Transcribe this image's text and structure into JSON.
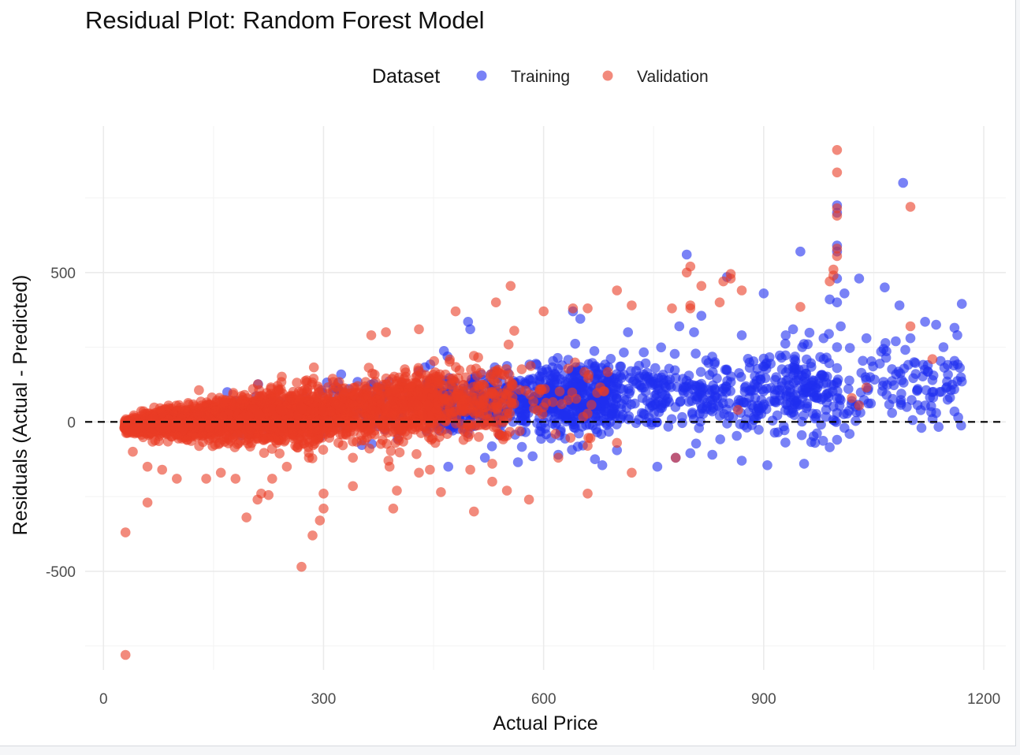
{
  "chart_data": {
    "type": "scatter",
    "title": "Residual Plot: Random Forest Model",
    "xlabel": "Actual Price",
    "ylabel": "Residuals (Actual - Predicted)",
    "xlim": [
      -25,
      1230
    ],
    "ylim": [
      -830,
      990
    ],
    "x_ticks": [
      0,
      300,
      600,
      900,
      1200
    ],
    "x_tick_labels": [
      "0",
      "300",
      "600",
      "900",
      "1200"
    ],
    "y_ticks": [
      -500,
      0,
      500
    ],
    "y_tick_labels": [
      "-500",
      "0",
      "500"
    ],
    "x_minor_ticks": [
      150,
      450,
      750,
      1050
    ],
    "y_minor_ticks": [
      -750,
      -250,
      250,
      750
    ],
    "grid": true,
    "reference_line": {
      "y": 0,
      "style": "dashed",
      "color": "#000000"
    },
    "legend": {
      "title": "Dataset",
      "position": "top",
      "entries": [
        {
          "label": "Training",
          "color": "#1f2ff0"
        },
        {
          "label": "Validation",
          "color": "#ea3c24"
        }
      ]
    },
    "series": [
      {
        "name": "Training",
        "color": "#1f2ff0",
        "points": [
          [
            795,
            560
          ],
          [
            1000,
            700
          ],
          [
            1000,
            725
          ],
          [
            1000,
            590
          ],
          [
            1000,
            570
          ],
          [
            950,
            570
          ],
          [
            1090,
            800
          ],
          [
            1030,
            480
          ],
          [
            1065,
            450
          ],
          [
            1170,
            395
          ],
          [
            1160,
            315
          ],
          [
            1145,
            250
          ],
          [
            1120,
            335
          ],
          [
            1135,
            325
          ],
          [
            1085,
            390
          ],
          [
            850,
            485
          ],
          [
            900,
            430
          ],
          [
            990,
            410
          ],
          [
            1000,
            400
          ],
          [
            1010,
            430
          ],
          [
            940,
            310
          ],
          [
            1005,
            320
          ],
          [
            640,
            370
          ],
          [
            650,
            345
          ],
          [
            497,
            335
          ],
          [
            500,
            310
          ],
          [
            715,
            300
          ],
          [
            785,
            320
          ],
          [
            815,
            355
          ],
          [
            805,
            300
          ],
          [
            870,
            290
          ],
          [
            930,
            290
          ],
          [
            960,
            260
          ],
          [
            1040,
            280
          ],
          [
            1060,
            235
          ],
          [
            1100,
            280
          ],
          [
            1105,
            200
          ],
          [
            1130,
            140
          ],
          [
            1150,
            135
          ],
          [
            1170,
            135
          ],
          [
            1110,
            110
          ],
          [
            1140,
            100
          ],
          [
            1120,
            55
          ],
          [
            1135,
            30
          ],
          [
            1160,
            35
          ],
          [
            1115,
            -20
          ],
          [
            1000,
            -60
          ],
          [
            990,
            -85
          ],
          [
            970,
            -70
          ],
          [
            955,
            -140
          ],
          [
            905,
            -145
          ],
          [
            800,
            -105
          ],
          [
            780,
            -120
          ],
          [
            755,
            -150
          ],
          [
            670,
            -125
          ],
          [
            680,
            -145
          ],
          [
            620,
            -110
          ],
          [
            585,
            -115
          ],
          [
            565,
            -135
          ],
          [
            520,
            -120
          ],
          [
            470,
            -150
          ],
          [
            700,
            -95
          ],
          [
            830,
            -110
          ],
          [
            870,
            -130
          ],
          [
            1000,
            480
          ],
          [
            1000,
            250
          ],
          [
            1000,
            180
          ],
          [
            1000,
            130
          ],
          [
            1000,
            80
          ],
          [
            1000,
            30
          ],
          [
            1010,
            -20
          ],
          [
            1020,
            70
          ],
          [
            1045,
            150
          ],
          [
            1075,
            30
          ],
          [
            1095,
            50
          ]
        ],
        "cloud": [
          {
            "x": [
              160,
              480
            ],
            "y_center": [
              15,
              75
            ],
            "y_spread": [
              45,
              85
            ],
            "count": 220
          },
          {
            "x": [
              440,
              700
            ],
            "y_center": [
              55,
              85
            ],
            "y_spread": [
              60,
              95
            ],
            "count": 520
          },
          {
            "x": [
              600,
              1000
            ],
            "y_center": [
              80,
              110
            ],
            "y_spread": [
              70,
              110
            ],
            "count": 560
          },
          {
            "x": [
              940,
              1170
            ],
            "y_center": [
              110,
              125
            ],
            "y_spread": [
              80,
              110
            ],
            "count": 130
          }
        ]
      },
      {
        "name": "Validation",
        "color": "#ea3c24",
        "points": [
          [
            1000,
            910
          ],
          [
            1000,
            835
          ],
          [
            1100,
            720
          ],
          [
            1000,
            715
          ],
          [
            1000,
            690
          ],
          [
            1000,
            580
          ],
          [
            1000,
            555
          ],
          [
            995,
            510
          ],
          [
            995,
            490
          ],
          [
            990,
            470
          ],
          [
            800,
            520
          ],
          [
            795,
            500
          ],
          [
            855,
            495
          ],
          [
            855,
            480
          ],
          [
            845,
            470
          ],
          [
            870,
            440
          ],
          [
            815,
            455
          ],
          [
            700,
            440
          ],
          [
            555,
            455
          ],
          [
            535,
            400
          ],
          [
            480,
            370
          ],
          [
            430,
            310
          ],
          [
            385,
            300
          ],
          [
            365,
            290
          ],
          [
            560,
            305
          ],
          [
            600,
            370
          ],
          [
            640,
            380
          ],
          [
            660,
            380
          ],
          [
            720,
            390
          ],
          [
            775,
            380
          ],
          [
            800,
            390
          ],
          [
            800,
            380
          ],
          [
            840,
            400
          ],
          [
            950,
            385
          ],
          [
            1100,
            320
          ],
          [
            1130,
            210
          ],
          [
            1040,
            115
          ],
          [
            1020,
            80
          ],
          [
            1030,
            55
          ],
          [
            865,
            40
          ],
          [
            780,
            -120
          ],
          [
            720,
            -170
          ],
          [
            660,
            -240
          ],
          [
            580,
            -260
          ],
          [
            550,
            -230
          ],
          [
            530,
            -200
          ],
          [
            505,
            -300
          ],
          [
            500,
            -160
          ],
          [
            460,
            -235
          ],
          [
            430,
            -170
          ],
          [
            400,
            -230
          ],
          [
            395,
            -290
          ],
          [
            340,
            -215
          ],
          [
            300,
            -240
          ],
          [
            300,
            -290
          ],
          [
            295,
            -330
          ],
          [
            270,
            -485
          ],
          [
            285,
            -380
          ],
          [
            225,
            -245
          ],
          [
            215,
            -240
          ],
          [
            210,
            -260
          ],
          [
            195,
            -320
          ],
          [
            60,
            -270
          ],
          [
            30,
            -370
          ],
          [
            30,
            -780
          ],
          [
            40,
            -100
          ],
          [
            60,
            -150
          ],
          [
            80,
            -160
          ],
          [
            100,
            -190
          ],
          [
            140,
            -190
          ],
          [
            160,
            -170
          ],
          [
            180,
            -190
          ],
          [
            230,
            -190
          ],
          [
            250,
            -150
          ],
          [
            280,
            -120
          ],
          [
            340,
            -120
          ],
          [
            390,
            -150
          ],
          [
            445,
            -160
          ],
          [
            530,
            -140
          ],
          [
            620,
            -120
          ],
          [
            660,
            -80
          ],
          [
            700,
            -70
          ]
        ],
        "cloud": [
          {
            "x": [
              28,
              120
            ],
            "y_center": [
              -12,
              0
            ],
            "y_spread": [
              14,
              42
            ],
            "count": 700
          },
          {
            "x": [
              120,
              300
            ],
            "y_center": [
              0,
              25
            ],
            "y_spread": [
              42,
              70
            ],
            "count": 1200
          },
          {
            "x": [
              300,
              460
            ],
            "y_center": [
              25,
              60
            ],
            "y_spread": [
              60,
              85
            ],
            "count": 700
          },
          {
            "x": [
              460,
              560
            ],
            "y_center": [
              60,
              80
            ],
            "y_spread": [
              75,
              95
            ],
            "count": 200
          },
          {
            "x": [
              560,
              700
            ],
            "y_center": [
              80,
              95
            ],
            "y_spread": [
              85,
              110
            ],
            "count": 40
          }
        ]
      }
    ]
  }
}
